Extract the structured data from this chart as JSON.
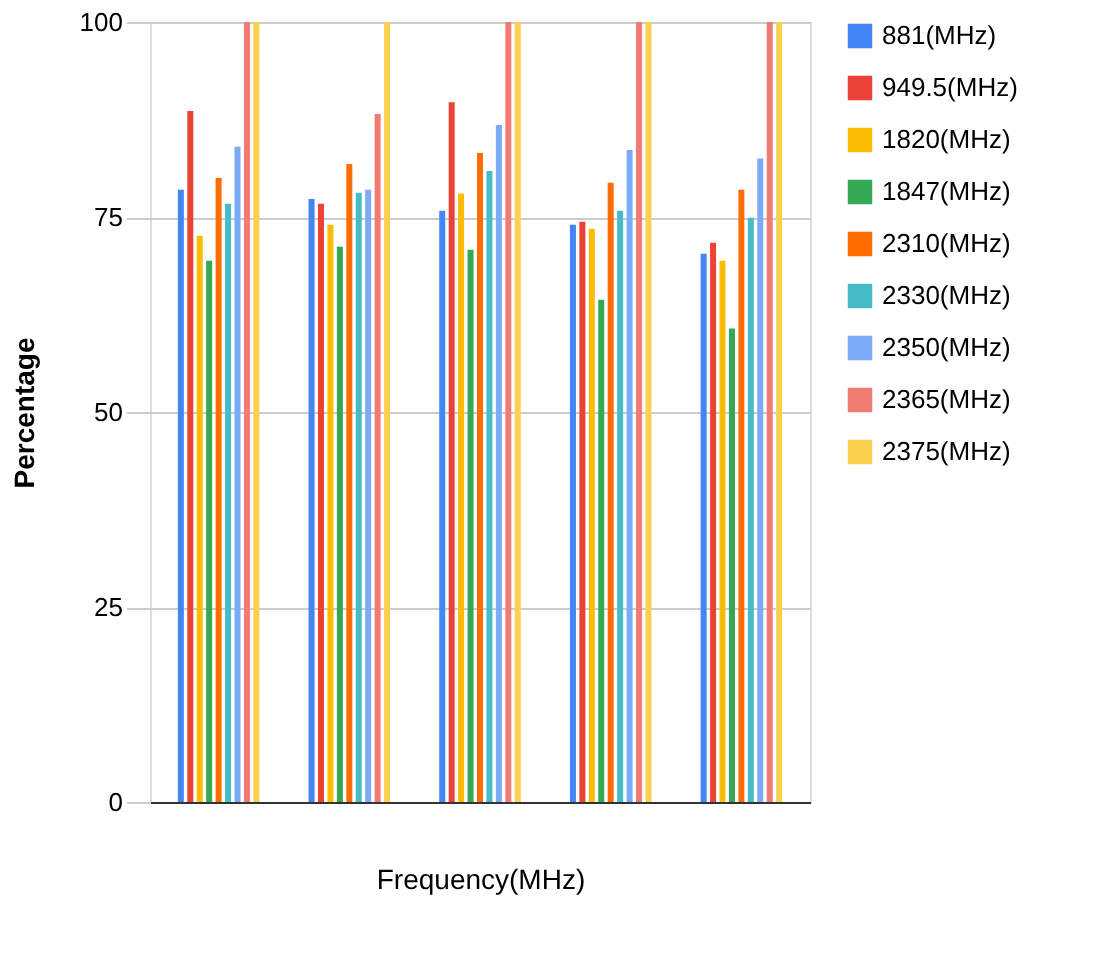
{
  "chart_data": {
    "type": "bar",
    "xlabel": "Frequency(MHz)",
    "ylabel": "Percentage",
    "categories": [
      null,
      null,
      null,
      null,
      null
    ],
    "series": [
      {
        "name": "881(MHz)",
        "color": "#4285f4",
        "values": [
          78.5,
          77.3,
          75.8,
          74,
          70.3
        ]
      },
      {
        "name": "949.5(MHz)",
        "color": "#ea4335",
        "values": [
          88.6,
          76.7,
          89.7,
          74.4,
          71.7
        ]
      },
      {
        "name": "1820(MHz)",
        "color": "#fbbc04",
        "values": [
          72.6,
          74,
          78,
          73.5,
          69.4
        ]
      },
      {
        "name": "1847(MHz)",
        "color": "#34a853",
        "values": [
          69.4,
          71.2,
          70.8,
          64.4,
          60.7
        ]
      },
      {
        "name": "2310(MHz)",
        "color": "#ff6d01",
        "values": [
          80,
          81.8,
          83.2,
          79.4,
          78.5
        ]
      },
      {
        "name": "2330(MHz)",
        "color": "#46bdc6",
        "values": [
          76.7,
          78.1,
          80.9,
          75.8,
          74.9
        ]
      },
      {
        "name": "2350(MHz)",
        "color": "#7baaf7",
        "values": [
          84,
          78.5,
          86.8,
          83.6,
          82.5
        ]
      },
      {
        "name": "2365(MHz)",
        "color": "#f07b72",
        "values": [
          100,
          88.2,
          100,
          100,
          100
        ]
      },
      {
        "name": "2375(MHz)",
        "color": "#fcd04f",
        "values": [
          100,
          100,
          100,
          100,
          100
        ]
      }
    ],
    "ylim": [
      0,
      100
    ],
    "yticks": [
      0,
      25,
      50,
      75,
      100
    ],
    "grid": "y",
    "legend": "right"
  }
}
